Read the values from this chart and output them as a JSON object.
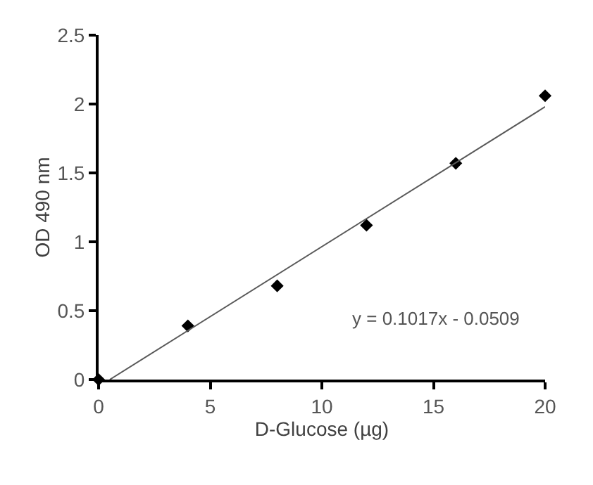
{
  "chart_data": {
    "type": "scatter",
    "xlabel": "D-Glucose (µg)",
    "ylabel": "OD 490 nm",
    "xlim": [
      0,
      20
    ],
    "ylim": [
      0,
      2.5
    ],
    "xticks": [
      0,
      5,
      10,
      15,
      20
    ],
    "yticks": [
      0,
      0.5,
      1,
      1.5,
      2,
      2.5
    ],
    "series": [
      {
        "color": "#000000",
        "marker": "diamond",
        "x": [
          0,
          4,
          8,
          12,
          16,
          20
        ],
        "values": [
          0,
          0.39,
          0.68,
          1.12,
          1.57,
          2.06
        ]
      },
      {
        "type": "line",
        "marker": "none",
        "color": "#595959",
        "x": [
          0.5,
          20
        ],
        "values": [
          0,
          1.98
        ]
      }
    ],
    "annotations": [
      "y = 0.1017x - 0.0509"
    ]
  }
}
